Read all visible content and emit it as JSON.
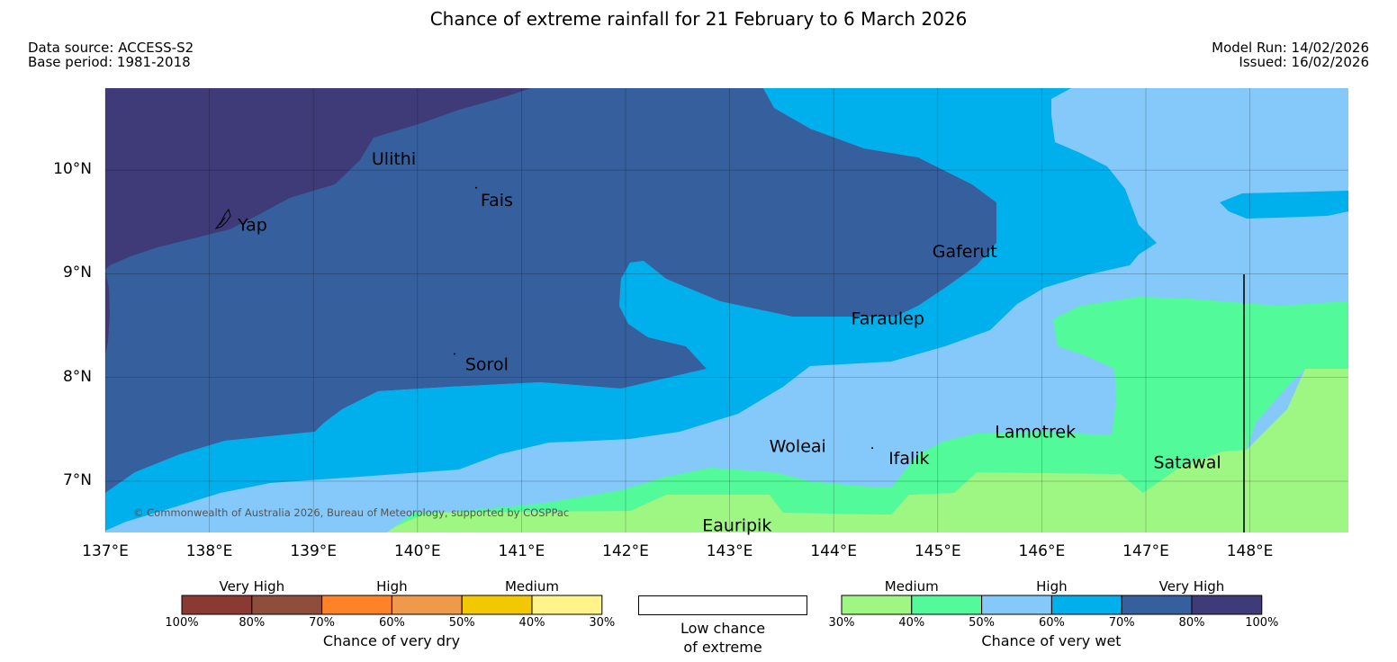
{
  "title": "Chance of extreme rainfall for 21 February to 6 March 2026",
  "meta_left": {
    "source": "Data source: ACCESS-S2",
    "base_period": "Base period: 1981-2018"
  },
  "meta_right": {
    "model_run": "Model Run: 14/02/2026",
    "issued": "Issued: 16/02/2026"
  },
  "copyright": "© Commonwealth of Australia 2026, Bureau of Meteorology, supported by COSPPac",
  "map": {
    "lon_range": [
      137,
      149
    ],
    "lat_range": [
      6.5,
      10.8
    ],
    "lon_ticks": [
      {
        "value": 137,
        "label": "137°E"
      },
      {
        "value": 138,
        "label": "138°E"
      },
      {
        "value": 139,
        "label": "139°E"
      },
      {
        "value": 140,
        "label": "140°E"
      },
      {
        "value": 141,
        "label": "141°E"
      },
      {
        "value": 142,
        "label": "142°E"
      },
      {
        "value": 143,
        "label": "143°E"
      },
      {
        "value": 144,
        "label": "144°E"
      },
      {
        "value": 145,
        "label": "145°E"
      },
      {
        "value": 146,
        "label": "146°E"
      },
      {
        "value": 147,
        "label": "147°E"
      },
      {
        "value": 148,
        "label": "148°E"
      }
    ],
    "lat_ticks": [
      {
        "value": 10,
        "label": "10°N"
      },
      {
        "value": 9,
        "label": "9°N"
      },
      {
        "value": 8,
        "label": "8°N"
      },
      {
        "value": 7,
        "label": "7°N"
      }
    ],
    "places": [
      {
        "name": "Ulithi",
        "lon": 139.75,
        "lat": 10.02
      },
      {
        "name": "Fais",
        "lon": 140.52,
        "lat": 9.76
      },
      {
        "name": "Yap",
        "lon": 138.1,
        "lat": 9.52
      },
      {
        "name": "Gaferut",
        "lon": 145.38,
        "lat": 9.23
      },
      {
        "name": "Faraulep",
        "lon": 144.6,
        "lat": 8.6
      },
      {
        "name": "Sorol",
        "lon": 140.39,
        "lat": 8.14
      },
      {
        "name": "Woleai",
        "lon": 143.9,
        "lat": 7.37
      },
      {
        "name": "Ifalik",
        "lon": 144.44,
        "lat": 7.25
      },
      {
        "name": "Lamotrek",
        "lon": 146.37,
        "lat": 7.49
      },
      {
        "name": "Satawal",
        "lon": 147.03,
        "lat": 7.37
      },
      {
        "name": "Eauripik",
        "lon": 143.04,
        "lat": 6.69
      }
    ]
  },
  "legend": {
    "dry": {
      "groups": [
        "Very High",
        "High",
        "Medium"
      ],
      "colors": [
        "#8b3a33",
        "#8f4e3c",
        "#ff8227",
        "#ef9a4a",
        "#f2c800",
        "#fff38a"
      ],
      "ticks": [
        "100%",
        "80%",
        "70%",
        "60%",
        "50%",
        "40%",
        "30%"
      ],
      "caption": "Chance of very dry"
    },
    "low": {
      "line1": "Low chance",
      "line2": "of extreme"
    },
    "wet": {
      "groups": [
        "Medium",
        "High",
        "Very High"
      ],
      "colors": [
        "#9ff783",
        "#52fa9a",
        "#85c9fb",
        "#00b0ec",
        "#36609d",
        "#3f3b78"
      ],
      "ticks": [
        "30%",
        "40%",
        "50%",
        "60%",
        "70%",
        "80%",
        "100%"
      ],
      "caption": "Chance of very wet"
    }
  }
}
